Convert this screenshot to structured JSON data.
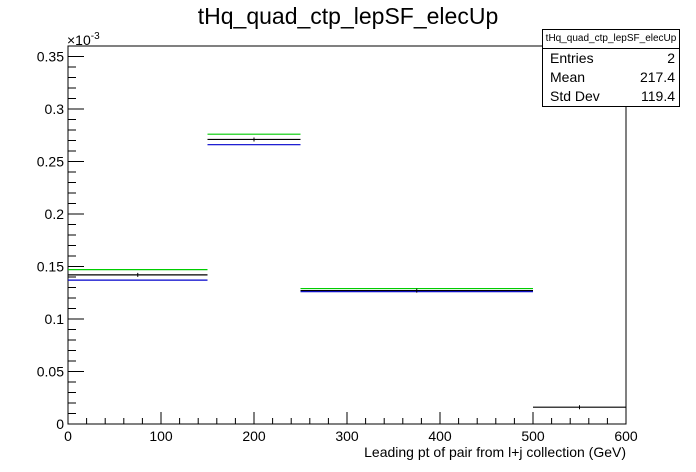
{
  "chart_data": {
    "type": "bar",
    "title": "tHq_quad_ctp_lepSF_elecUp",
    "xlabel": "Leading pt of pair from l+j collection (GeV)",
    "ylabel": "",
    "y_multiplier_label": "×10",
    "y_multiplier_exp": "-3",
    "xlim": [
      0,
      600
    ],
    "ylim": [
      0,
      0.36
    ],
    "x_ticks": [
      0,
      100,
      200,
      300,
      400,
      500,
      600
    ],
    "y_ticks": [
      0,
      0.05,
      0.1,
      0.15,
      0.2,
      0.25,
      0.3,
      0.35
    ],
    "x_tick_labels": [
      "0",
      "100",
      "200",
      "300",
      "400",
      "500",
      "600"
    ],
    "y_tick_labels": [
      "0",
      "0.05",
      "0.1",
      "0.15",
      "0.2",
      "0.25",
      "0.3",
      "0.35"
    ],
    "bin_edges": [
      0,
      150,
      250,
      500,
      600
    ],
    "series": [
      {
        "color": "#000000",
        "values": [
          0.142,
          0.271,
          0.127,
          0.016
        ]
      },
      {
        "color": "#00cc00",
        "values": [
          0.147,
          0.276,
          0.129,
          null
        ]
      },
      {
        "color": "#0000cc",
        "values": [
          0.137,
          0.266,
          0.126,
          null
        ]
      }
    ],
    "grid": false,
    "stats_box": {
      "name": "tHq_quad_ctp_lepSF_elecUp",
      "entries_label": "Entries",
      "entries": "2",
      "mean_label": "Mean",
      "mean": "217.4",
      "stddev_label": "Std Dev",
      "stddev": "119.4"
    }
  }
}
